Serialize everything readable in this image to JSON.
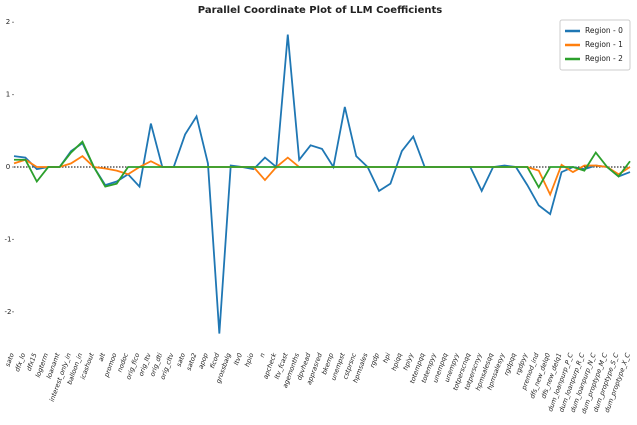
{
  "chart_data": {
    "type": "line",
    "title": "Parallel Coordinate Plot of LLM Coefficients",
    "categories": [
      "sato",
      "dfx_lo",
      "dfx15",
      "logterm",
      "loanamt",
      "interest_only_in",
      "balloon_in",
      "icashout",
      "alt",
      "promoo",
      "nodoc",
      "orig_fico",
      "orig_ltv",
      "orig_dti",
      "orig_cltv",
      "sato",
      "sato2",
      "apop",
      "ficod",
      "grossbalg",
      "ltv0",
      "hpio",
      "n",
      "apcheck",
      "ltv_fcast",
      "agemonths",
      "dpvhead",
      "apprasred",
      "bkemp",
      "unempst",
      "cstprsnc",
      "hpmsales",
      "rgdp",
      "hpi",
      "hpiqq",
      "hpiyy",
      "totempqq",
      "totempyy",
      "unempqq",
      "unempyy",
      "totperscnqq",
      "totperscnyy",
      "hpmsalesqq",
      "hpmsalesyy",
      "rgdpqq",
      "rgdpyy",
      "premod_ind",
      "dfs_new_delq0",
      "dfs_new_delq1",
      "dum_loanpurp_P_C",
      "dum_loanpurp_R_C",
      "dum_loanpurp_N_C",
      "dum_proptype_M_C",
      "dum_proptype_S_C",
      "dum_proptype_X_C"
    ],
    "series": [
      {
        "name": "Region - 0",
        "color": "#1f77b4",
        "values": [
          0.15,
          0.13,
          -0.03,
          0,
          0,
          0.22,
          0.33,
          0,
          -0.25,
          -0.2,
          -0.1,
          -0.27,
          0.6,
          0,
          0,
          0.45,
          0.7,
          0.05,
          -2.3,
          0.02,
          0,
          -0.03,
          0.13,
          0,
          1.83,
          0.1,
          0.3,
          0.25,
          0,
          0.83,
          0.15,
          0,
          -0.33,
          -0.23,
          0.22,
          0.42,
          0,
          0,
          0,
          0,
          0,
          -0.33,
          0,
          0.02,
          0,
          -0.25,
          -0.53,
          -0.65,
          -0.07,
          0,
          -0.03,
          0.02,
          0,
          -0.13,
          -0.07
        ]
      },
      {
        "name": "Region - 1",
        "color": "#ff7f0e",
        "values": [
          0.05,
          0.1,
          0,
          0,
          0,
          0.05,
          0.15,
          0,
          -0.02,
          -0.05,
          -0.1,
          0,
          0.08,
          0,
          0,
          0,
          0,
          0,
          0,
          0,
          0,
          0,
          -0.18,
          0,
          0.13,
          0,
          0,
          0,
          0,
          0,
          0,
          0,
          0,
          0,
          0,
          0,
          0,
          0,
          0,
          0,
          0,
          0,
          0,
          0,
          0,
          0,
          -0.05,
          -0.38,
          0.03,
          -0.07,
          0.02,
          0.02,
          0,
          -0.1,
          0
        ]
      },
      {
        "name": "Region - 2",
        "color": "#2ca02c",
        "values": [
          0.1,
          0.1,
          -0.2,
          0,
          0,
          0.2,
          0.35,
          0,
          -0.27,
          -0.23,
          0,
          0,
          0,
          0,
          0,
          0,
          0,
          0,
          0,
          0,
          0,
          0,
          0,
          0,
          0,
          0,
          0,
          0,
          0,
          0,
          0,
          0,
          0,
          0,
          0,
          0,
          0,
          0,
          0,
          0,
          0,
          0,
          0,
          0,
          0,
          0,
          -0.28,
          0,
          0,
          0,
          -0.05,
          0.2,
          0,
          -0.13,
          0.08
        ]
      }
    ],
    "ylim": [
      -2.5,
      2.1
    ],
    "yticks": [
      -2,
      -1,
      0,
      1,
      2
    ],
    "legend": "upper right"
  }
}
